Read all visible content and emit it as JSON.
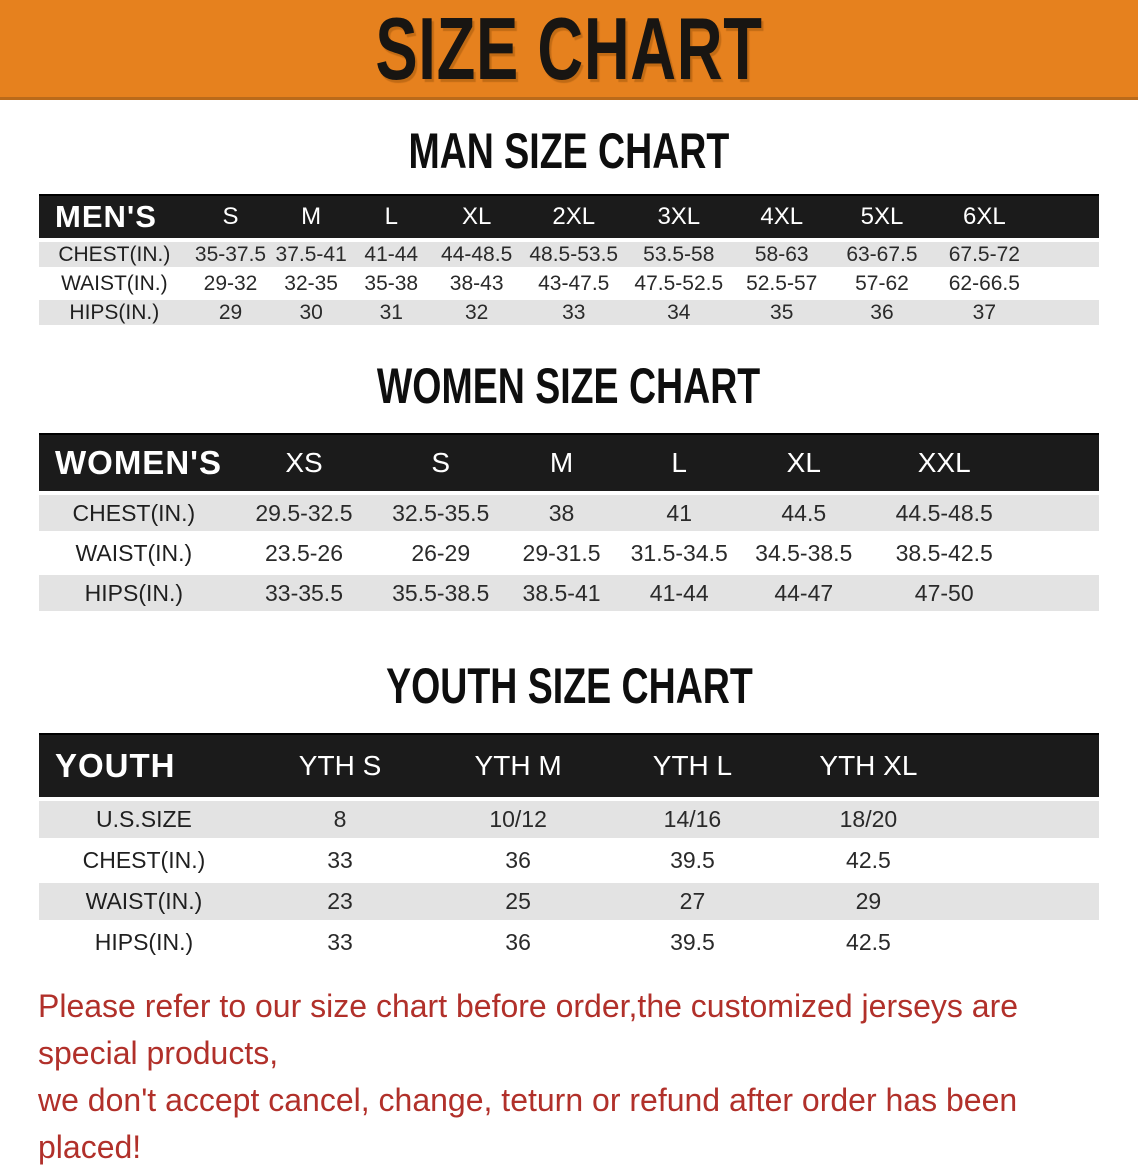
{
  "banner": {
    "title": "SIZE CHART",
    "bg_color": "#E6811E",
    "text_color": "#181512"
  },
  "sections": [
    {
      "heading": "MAN SIZE CHART",
      "table": {
        "header_label": "MEN'S",
        "columns": [
          "S",
          "M",
          "L",
          "XL",
          "2XL",
          "3XL",
          "4XL",
          "5XL",
          "6XL"
        ],
        "rows": [
          {
            "label": "CHEST(IN.)",
            "values": [
              "35-37.5",
              "37.5-41",
              "41-44",
              "44-48.5",
              "48.5-53.5",
              "53.5-58",
              "58-63",
              "63-67.5",
              "67.5-72"
            ]
          },
          {
            "label": "WAIST(IN.)",
            "values": [
              "29-32",
              "32-35",
              "35-38",
              "38-43",
              "43-47.5",
              "47.5-52.5",
              "52.5-57",
              "57-62",
              "62-66.5"
            ]
          },
          {
            "label": "HIPS(IN.)",
            "values": [
              "29",
              "30",
              "31",
              "32",
              "33",
              "34",
              "35",
              "36",
              "37"
            ]
          }
        ]
      }
    },
    {
      "heading": "WOMEN SIZE CHART",
      "table": {
        "header_label": "WOMEN'S",
        "columns": [
          "XS",
          "S",
          "M",
          "L",
          "XL",
          "XXL"
        ],
        "rows": [
          {
            "label": "CHEST(IN.)",
            "values": [
              "29.5-32.5",
              "32.5-35.5",
              "38",
              "41",
              "44.5",
              "44.5-48.5"
            ]
          },
          {
            "label": "WAIST(IN.)",
            "values": [
              "23.5-26",
              "26-29",
              "29-31.5",
              "31.5-34.5",
              "34.5-38.5",
              "38.5-42.5"
            ]
          },
          {
            "label": "HIPS(IN.)",
            "values": [
              "33-35.5",
              "35.5-38.5",
              "38.5-41",
              "41-44",
              "44-47",
              "47-50"
            ]
          }
        ]
      }
    },
    {
      "heading": "YOUTH SIZE CHART",
      "table": {
        "header_label": "YOUTH",
        "columns": [
          "YTH S",
          "YTH M",
          "YTH L",
          "YTH XL"
        ],
        "rows": [
          {
            "label": "U.S.SIZE",
            "values": [
              "8",
              "10/12",
              "14/16",
              "18/20"
            ]
          },
          {
            "label": "CHEST(IN.)",
            "values": [
              "33",
              "36",
              "39.5",
              "42.5"
            ]
          },
          {
            "label": "WAIST(IN.)",
            "values": [
              "23",
              "25",
              "27",
              "29"
            ]
          },
          {
            "label": "HIPS(IN.)",
            "values": [
              "33",
              "36",
              "39.5",
              "42.5"
            ]
          }
        ]
      }
    }
  ],
  "disclaimer": {
    "line1": "Please refer to our size chart before order,the customized jerseys are special products,",
    "line2": "we don't accept cancel, change, teturn or refund after order has been placed!",
    "color": "#B1302A"
  },
  "colors": {
    "table_header_black": "#1b1b1b",
    "row_gray": "#e3e3e3",
    "row_white": "#ffffff"
  }
}
